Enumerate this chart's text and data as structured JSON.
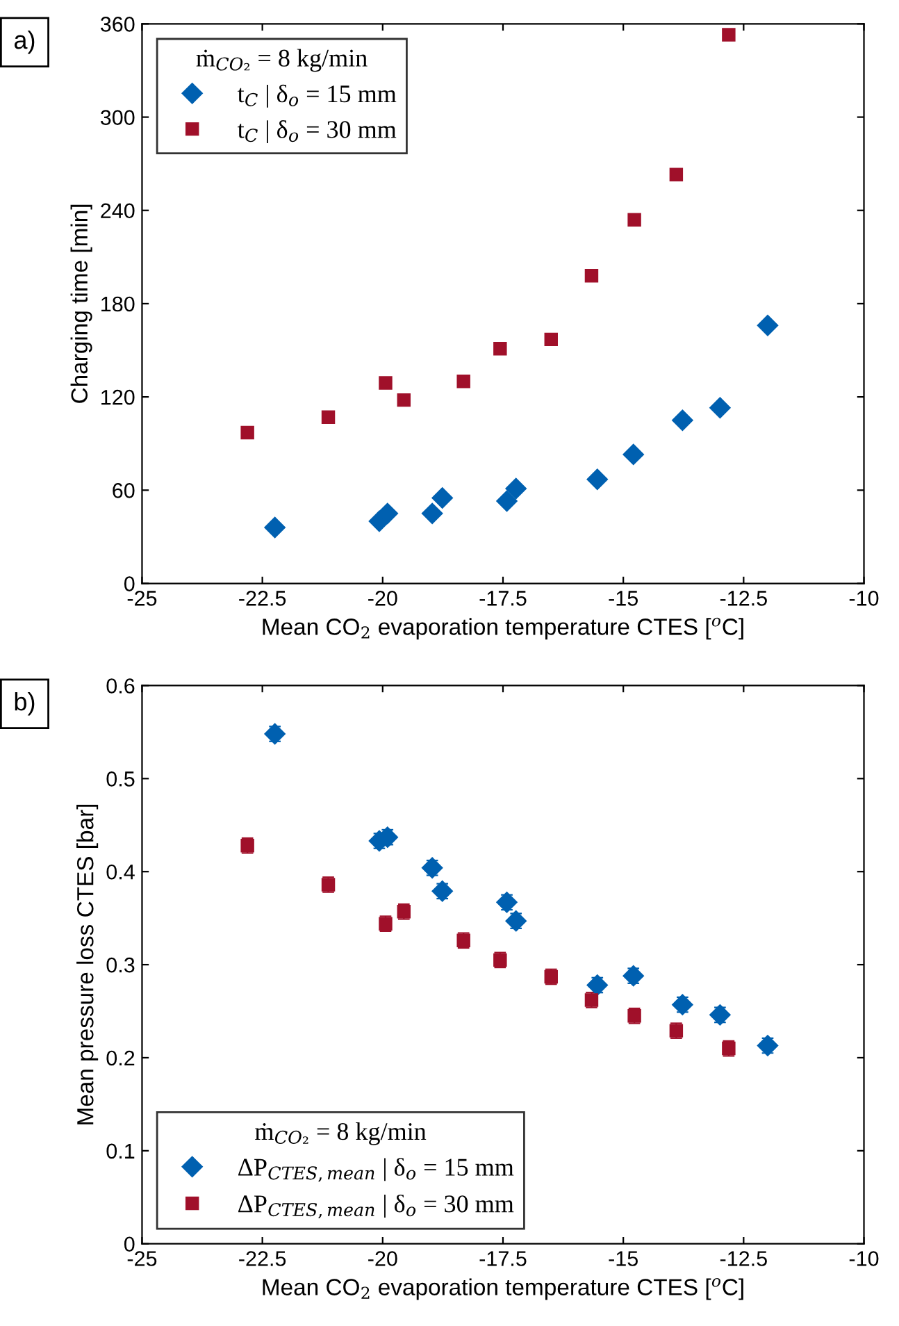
{
  "chart_data": [
    {
      "type": "scatter",
      "xlabel": "Mean CO$_{2}$ evaporation temperature CTES [$^{o}$C]",
      "ylabel": "Charging time [min]",
      "legend_title": "ṁ$_{CO₂}$ = 8 kg/min",
      "annotations": [
        "a)"
      ],
      "xlim": [
        -25,
        -10
      ],
      "xticks": [
        -25,
        -22.5,
        -20,
        -17.5,
        -15,
        -12.5,
        -10
      ],
      "ylim": [
        0,
        360
      ],
      "yticks": [
        0,
        60,
        120,
        180,
        240,
        300,
        360
      ],
      "grid": false,
      "legend": "top left",
      "series": [
        {
          "name": "t$_{C}$ | δ$_{o}$ = 15 mm",
          "color": "#0060b0",
          "marker": "diamond",
          "x": [
            -22.24,
            -20.07,
            -19.9,
            -18.97,
            -18.76,
            -17.42,
            -17.23,
            -15.54,
            -14.79,
            -13.77,
            -12.99,
            -12.0
          ],
          "values": [
            36,
            40,
            45,
            45,
            55,
            53,
            61,
            67,
            83,
            105,
            113,
            166
          ]
        },
        {
          "name": "t$_{C}$ | δ$_{o}$ = 30 mm",
          "color": "#a0102a",
          "marker": "square",
          "x": [
            -22.81,
            -21.13,
            -19.94,
            -19.56,
            -18.32,
            -17.56,
            -16.5,
            -15.66,
            -14.77,
            -13.9,
            -12.81
          ],
          "values": [
            97,
            107,
            129,
            118,
            130,
            151,
            157,
            198,
            234,
            263,
            353
          ]
        }
      ]
    },
    {
      "type": "scatter",
      "xlabel": "Mean CO$_{2}$ evaporation temperature CTES [$^{o}$C]",
      "ylabel": "Mean pressure loss CTES [bar]",
      "legend_title": "ṁ$_{CO₂}$ = 8 kg/min",
      "annotations": [
        "b)"
      ],
      "xlim": [
        -25,
        -10
      ],
      "xticks": [
        -25,
        -22.5,
        -20,
        -17.5,
        -15,
        -12.5,
        -10
      ],
      "ylim": [
        0,
        0.6
      ],
      "yticks": [
        0,
        0.1,
        0.2,
        0.3,
        0.4,
        0.5,
        0.6
      ],
      "grid": false,
      "legend": "bottom left",
      "series": [
        {
          "name": "ΔP$_{CTES,mean}$ | δ$_{o}$ = 15 mm",
          "color": "#0060b0",
          "marker": "diamond",
          "x": [
            -22.24,
            -20.07,
            -19.9,
            -18.97,
            -18.76,
            -17.42,
            -17.23,
            -15.54,
            -14.79,
            -13.77,
            -12.99,
            -12.0
          ],
          "values": [
            0.548,
            0.433,
            0.437,
            0.404,
            0.379,
            0.367,
            0.347,
            0.278,
            0.288,
            0.257,
            0.246,
            0.213
          ],
          "errors": [
            0.008,
            0.008,
            0.008,
            0.008,
            0.008,
            0.008,
            0.008,
            0.008,
            0.008,
            0.008,
            0.008,
            0.008
          ]
        },
        {
          "name": "ΔP$_{CTES,mean}$ | δ$_{o}$ = 30 mm",
          "color": "#a0102a",
          "marker": "square",
          "x": [
            -22.81,
            -21.13,
            -19.94,
            -19.56,
            -18.32,
            -17.56,
            -16.5,
            -15.66,
            -14.77,
            -13.9,
            -12.81
          ],
          "values": [
            0.428,
            0.386,
            0.344,
            0.357,
            0.326,
            0.305,
            0.287,
            0.262,
            0.245,
            0.229,
            0.21
          ],
          "errors": [
            0.008,
            0.008,
            0.008,
            0.008,
            0.008,
            0.008,
            0.008,
            0.008,
            0.008,
            0.008,
            0.008
          ]
        }
      ]
    }
  ]
}
